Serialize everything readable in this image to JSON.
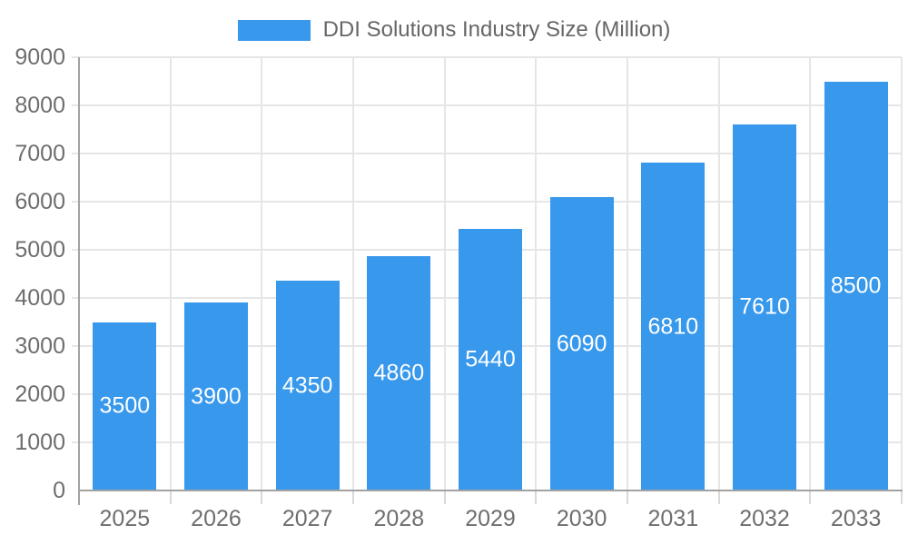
{
  "chart_data": {
    "type": "bar",
    "title": "DDI Solutions Industry Size (Million)",
    "legend": {
      "label": "DDI Solutions Industry Size (Million)",
      "position": "top"
    },
    "categories": [
      "2025",
      "2026",
      "2027",
      "2028",
      "2029",
      "2030",
      "2031",
      "2032",
      "2033"
    ],
    "values": [
      3500,
      3900,
      4350,
      4860,
      5440,
      6090,
      6810,
      7610,
      8500
    ],
    "bar_labels": [
      "3500",
      "3900",
      "4350",
      "4860",
      "5440",
      "6090",
      "6810",
      "7610",
      "8500"
    ],
    "xlabel": "",
    "ylabel": "",
    "ylim": [
      0,
      9000
    ],
    "y_ticks": [
      0,
      1000,
      2000,
      3000,
      4000,
      5000,
      6000,
      7000,
      8000,
      9000
    ],
    "grid": true,
    "gridlines": "horizontal-and-vertical",
    "colors": {
      "bar": "#3898EC",
      "bar_label": "#FFFFFF",
      "axis_text": "#6E6E6E",
      "legend_text": "#666666",
      "gridline": "#E6E6E6",
      "axis_line": "#A2A2A2",
      "tick": "#D9D9D9",
      "background": "#FFFFFF"
    }
  }
}
